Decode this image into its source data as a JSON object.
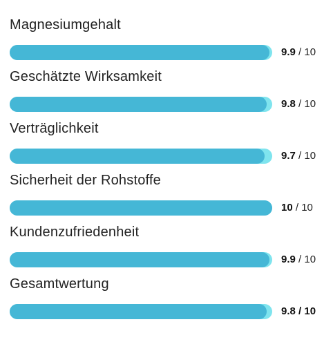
{
  "ratings": [
    {
      "label": "Magnesiumgehalt",
      "value": "9.9",
      "max_text": " / 10",
      "fraction": 0.99
    },
    {
      "label": "Geschätzte Wirksamkeit",
      "value": "9.8",
      "max_text": " / 10",
      "fraction": 0.98
    },
    {
      "label": "Verträglichkeit",
      "value": "9.7",
      "max_text": " / 10",
      "fraction": 0.97
    },
    {
      "label": "Sicherheit der Rohstoffe",
      "value": "10",
      "max_text": " / 10",
      "fraction": 1.0
    },
    {
      "label": "Kundenzufriedenheit",
      "value": "9.9",
      "max_text": " / 10",
      "fraction": 0.99
    },
    {
      "label": "Gesamtwertung",
      "value": "9.8",
      "max_text": " / 10",
      "fraction": 0.98,
      "bold_max": true
    }
  ],
  "colors": {
    "bar_fill": "#45b7d6",
    "bar_track": "#7fe4ee",
    "text": "#222222"
  }
}
